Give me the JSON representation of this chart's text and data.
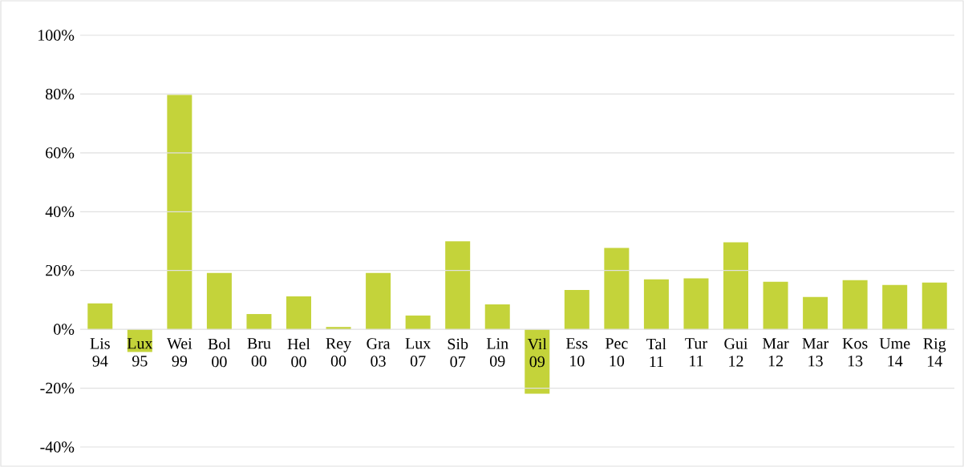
{
  "chart_data": {
    "type": "bar",
    "categories": [
      "Lis 94",
      "Lux 95",
      "Wei 99",
      "Bol 00",
      "Bru 00",
      "Hel 00",
      "Rey 00",
      "Gra 03",
      "Lux 07",
      "Sib 07",
      "Lin 09",
      "Vil 09",
      "Ess 10",
      "Pec 10",
      "Tal 11",
      "Tur 11",
      "Gui 12",
      "Mar 12",
      "Mar 13",
      "Kos 13",
      "Ume 14",
      "Rig 14"
    ],
    "values": [
      8.8,
      -7.7,
      79.7,
      19.2,
      5.2,
      11.2,
      0.8,
      19.2,
      4.7,
      29.9,
      8.5,
      -21.9,
      13.4,
      27.7,
      17,
      17.3,
      29.6,
      16.2,
      11,
      16.7,
      15.1,
      15.9
    ],
    "color": "#c4d33a",
    "ylim": [
      -40,
      100
    ],
    "yticks": [
      {
        "value": -40,
        "label": "-40%"
      },
      {
        "value": -20,
        "label": "-20%"
      },
      {
        "value": 0,
        "label": "0%"
      },
      {
        "value": 20,
        "label": "20%"
      },
      {
        "value": 40,
        "label": "40%"
      },
      {
        "value": 60,
        "label": "60%"
      },
      {
        "value": 80,
        "label": "80%"
      },
      {
        "value": 100,
        "label": "100%"
      }
    ],
    "grid": "y"
  }
}
